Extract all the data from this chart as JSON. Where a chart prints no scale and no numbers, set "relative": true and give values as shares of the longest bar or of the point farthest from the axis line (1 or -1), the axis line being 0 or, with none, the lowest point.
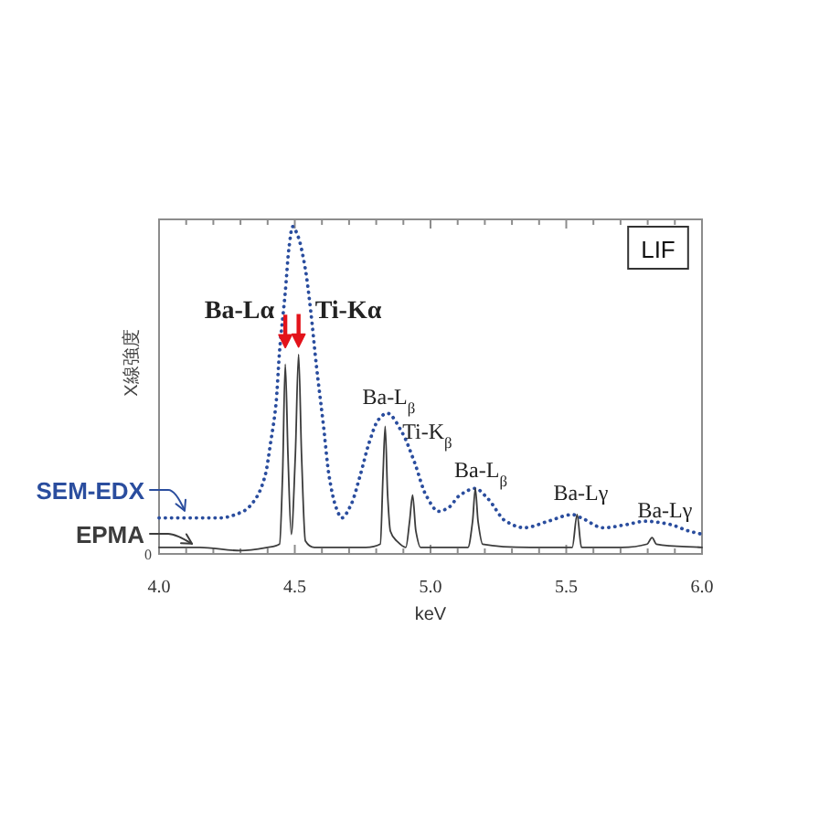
{
  "chart_data": {
    "type": "line",
    "relative": true,
    "xlabel": "keV",
    "ylabel": "X線強度",
    "legend": "left",
    "xlim": [
      4.0,
      6.0
    ],
    "xticks": [
      {
        "value": 4.0,
        "label": "4.0"
      },
      {
        "value": 4.1,
        "label": null
      },
      {
        "value": 4.2,
        "label": null
      },
      {
        "value": 4.3,
        "label": null
      },
      {
        "value": 4.4,
        "label": null
      },
      {
        "value": 4.5,
        "label": "4.5"
      },
      {
        "value": 4.6,
        "label": null
      },
      {
        "value": 4.7,
        "label": null
      },
      {
        "value": 4.8,
        "label": null
      },
      {
        "value": 4.9,
        "label": null
      },
      {
        "value": 5.0,
        "label": "5.0"
      },
      {
        "value": 5.1,
        "label": null
      },
      {
        "value": 5.2,
        "label": null
      },
      {
        "value": 5.3,
        "label": null
      },
      {
        "value": 5.4,
        "label": null
      },
      {
        "value": 5.5,
        "label": "5.5"
      },
      {
        "value": 5.6,
        "label": null
      },
      {
        "value": 5.7,
        "label": null
      },
      {
        "value": 5.8,
        "label": null
      },
      {
        "value": 5.9,
        "label": null
      },
      {
        "value": 6.0,
        "label": "6.0"
      }
    ],
    "series": [
      {
        "name": "SEM-EDX",
        "color": "#2a4d9e",
        "line_style": "dotted",
        "x": [
          4.0,
          4.222,
          4.31,
          4.357,
          4.391,
          4.411,
          4.431,
          4.444,
          4.465,
          4.478,
          4.492,
          4.512,
          4.539,
          4.559,
          4.579,
          4.606,
          4.626,
          4.653,
          4.673,
          4.707,
          4.741,
          4.774,
          4.808,
          4.84,
          4.896,
          4.941,
          4.983,
          5.03,
          5.064,
          5.109,
          5.165,
          5.21,
          5.277,
          5.345,
          5.434,
          5.522,
          5.556,
          5.636,
          5.724,
          5.791,
          5.883,
          5.951,
          6.0
        ],
        "values": [
          0.11,
          0.11,
          0.13,
          0.17,
          0.24,
          0.34,
          0.46,
          0.62,
          0.8,
          0.93,
          1.0,
          0.97,
          0.87,
          0.74,
          0.58,
          0.39,
          0.24,
          0.14,
          0.11,
          0.15,
          0.24,
          0.34,
          0.41,
          0.43,
          0.37,
          0.28,
          0.18,
          0.13,
          0.14,
          0.18,
          0.2,
          0.17,
          0.1,
          0.08,
          0.1,
          0.12,
          0.11,
          0.08,
          0.09,
          0.1,
          0.09,
          0.07,
          0.06
        ]
      },
      {
        "name": "EPMA",
        "color": "#3c3c3c",
        "line_style": "solid",
        "x": [
          4.0,
          4.15,
          4.3,
          4.4,
          4.444,
          4.455,
          4.465,
          4.475,
          4.487,
          4.502,
          4.514,
          4.525,
          4.539,
          4.572,
          4.761,
          4.815,
          4.825,
          4.833,
          4.842,
          4.852,
          4.875,
          4.909,
          4.923,
          4.934,
          4.946,
          4.963,
          5.138,
          5.155,
          5.165,
          5.175,
          5.192,
          5.367,
          5.522,
          5.54,
          5.556,
          5.704,
          5.798,
          5.816,
          5.832,
          6.0
        ],
        "values": [
          0.02,
          0.02,
          0.01,
          0.02,
          0.03,
          0.24,
          0.58,
          0.3,
          0.06,
          0.3,
          0.61,
          0.3,
          0.04,
          0.02,
          0.02,
          0.03,
          0.24,
          0.39,
          0.18,
          0.07,
          0.04,
          0.02,
          0.1,
          0.18,
          0.07,
          0.02,
          0.02,
          0.1,
          0.2,
          0.1,
          0.03,
          0.02,
          0.02,
          0.12,
          0.02,
          0.02,
          0.03,
          0.05,
          0.03,
          0.02
        ]
      }
    ],
    "annotations": [
      {
        "text": "Ba-Lα",
        "x": 4.465,
        "y": 0.58
      },
      {
        "text": "Ti-Kα",
        "x": 4.514,
        "y": 0.61
      },
      {
        "text": "Ba-L$_{β}$",
        "x": 4.833,
        "y": 0.39
      },
      {
        "text": "Ti-K$_{β}$",
        "x": 4.934,
        "y": 0.18
      },
      {
        "text": "Ba-L$_{β}$",
        "x": 5.165,
        "y": 0.2
      },
      {
        "text": "Ba-Lγ",
        "x": 5.54,
        "y": 0.12
      },
      {
        "text": "Ba-Lγ",
        "x": 5.816,
        "y": 0.05
      },
      "LIF",
      "0"
    ]
  }
}
